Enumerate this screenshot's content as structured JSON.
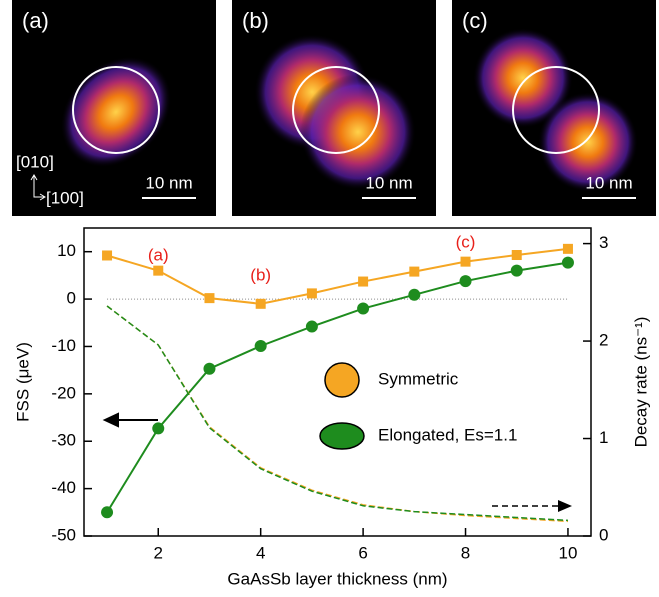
{
  "panels": [
    {
      "label": "(a)",
      "scale": "10 nm",
      "axes": [
        "[010]",
        "[100]"
      ]
    },
    {
      "label": "(b)",
      "scale": "10 nm"
    },
    {
      "label": "(c)",
      "scale": "10 nm"
    }
  ],
  "chart_data": {
    "type": "line",
    "x_label": "GaAsSb layer thickness (nm)",
    "y_label": "FSS (μeV)",
    "y2_label": "Decay rate (ns⁻¹)",
    "x": [
      1,
      2,
      3,
      4,
      5,
      6,
      7,
      8,
      9,
      10
    ],
    "series": [
      {
        "name": "Symmetric",
        "color": "#f5a623",
        "marker": "square",
        "values": [
          9.2,
          6,
          0.2,
          -1,
          1.2,
          3.7,
          5.8,
          7.9,
          9.3,
          10.6
        ]
      },
      {
        "name": "Elongated, Es=1.1",
        "color": "#1e8c1e",
        "marker": "circle",
        "values": [
          -45,
          -27.3,
          -14.7,
          -9.9,
          -5.8,
          -2,
          0.9,
          3.8,
          6,
          7.7
        ]
      },
      {
        "color": "#f5a623",
        "axis": "y2",
        "dashed": true,
        "values": [
          2.36,
          1.96,
          1.12,
          0.7,
          0.47,
          0.32,
          0.25,
          0.21,
          0.18,
          0.15
        ]
      },
      {
        "color": "#1e8c1e",
        "axis": "y2",
        "dashed": true,
        "values": [
          2.36,
          1.96,
          1.11,
          0.69,
          0.46,
          0.31,
          0.25,
          0.22,
          0.19,
          0.16
        ]
      }
    ],
    "annotations": [
      "(a)",
      "(b)",
      "(c)"
    ],
    "annotation_color": "#e8201a",
    "xlim": [
      0.55,
      10.45
    ],
    "xticks": [
      2,
      4,
      6,
      8,
      10
    ],
    "ylim": [
      -50,
      15
    ],
    "yticks": [
      -50,
      -40,
      -30,
      -20,
      -10,
      0,
      10
    ],
    "y2lim": [
      0,
      3.16
    ],
    "y2ticks": [
      0,
      1,
      2,
      3
    ]
  }
}
